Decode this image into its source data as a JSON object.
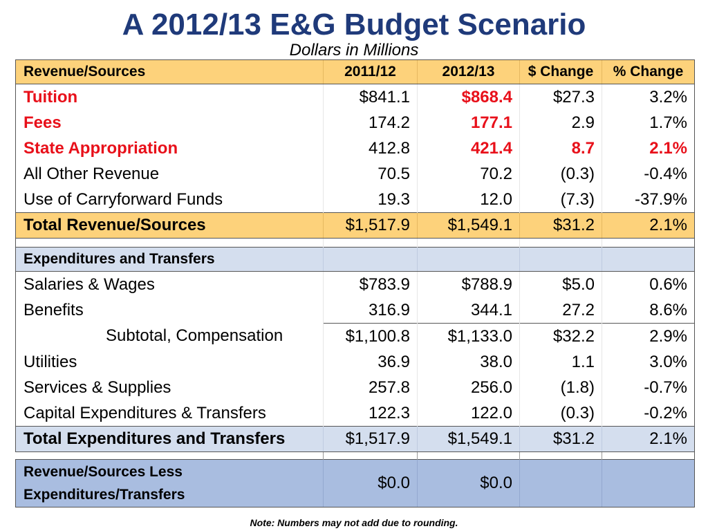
{
  "title": "A 2012/13 E&G Budget Scenario",
  "subtitle": "Dollars in Millions",
  "note": "Note: Numbers may not add due to rounding.",
  "header": {
    "label": "Revenue/Sources",
    "col1": "2011/12",
    "col2": "2012/13",
    "col3": "$ Change",
    "col4": "% Change"
  },
  "revenue_rows": [
    {
      "label": "Tuition",
      "y1": "$841.1",
      "y2": "$868.4",
      "chg": "$27.3",
      "pct": "3.2%"
    },
    {
      "label": "Fees",
      "y1": "174.2",
      "y2": "177.1",
      "chg": "2.9",
      "pct": "1.7%"
    },
    {
      "label": "State Appropriation",
      "y1": "412.8",
      "y2": "421.4",
      "chg": "8.7",
      "pct": "2.1%"
    },
    {
      "label": "All Other Revenue",
      "y1": "70.5",
      "y2": "70.2",
      "chg": "(0.3)",
      "pct": "-0.4%"
    },
    {
      "label": "Use of Carryforward Funds",
      "y1": "19.3",
      "y2": "12.0",
      "chg": "(7.3)",
      "pct": "-37.9%"
    }
  ],
  "revenue_total": {
    "label": "Total Revenue/Sources",
    "y1": "$1,517.9",
    "y2": "$1,549.1",
    "chg": "$31.2",
    "pct": "2.1%"
  },
  "expenditure_header": "Expenditures and Transfers",
  "expenditure_rows": [
    {
      "label": "Salaries & Wages",
      "y1": "$783.9",
      "y2": "$788.9",
      "chg": "$5.0",
      "pct": "0.6%"
    },
    {
      "label": "Benefits",
      "y1": "316.9",
      "y2": "344.1",
      "chg": "27.2",
      "pct": "8.6%"
    }
  ],
  "subtotal": {
    "label": "Subtotal, Compensation",
    "y1": "$1,100.8",
    "y2": "$1,133.0",
    "chg": "$32.2",
    "pct": "2.9%"
  },
  "expenditure_rows2": [
    {
      "label": "Utilities",
      "y1": "36.9",
      "y2": "38.0",
      "chg": "1.1",
      "pct": "3.0%"
    },
    {
      "label": "Services & Supplies",
      "y1": "257.8",
      "y2": "256.0",
      "chg": "(1.8)",
      "pct": "-0.7%"
    },
    {
      "label": "Capital Expenditures & Transfers",
      "y1": "122.3",
      "y2": "122.0",
      "chg": "(0.3)",
      "pct": "-0.2%"
    }
  ],
  "expenditure_total": {
    "label": "Total Expenditures and Transfers",
    "y1": "$1,517.9",
    "y2": "$1,549.1",
    "chg": "$31.2",
    "pct": "2.1%"
  },
  "net": {
    "label": "Revenue/Sources Less Expenditures/Transfers",
    "y1": "$0.0",
    "y2": "$0.0"
  },
  "colors": {
    "title": "#1f3a7a",
    "highlight_red": "#e8101a",
    "revenue_band": "#fdd27b",
    "expense_band": "#d4deee",
    "net_band": "#a9bde0"
  }
}
